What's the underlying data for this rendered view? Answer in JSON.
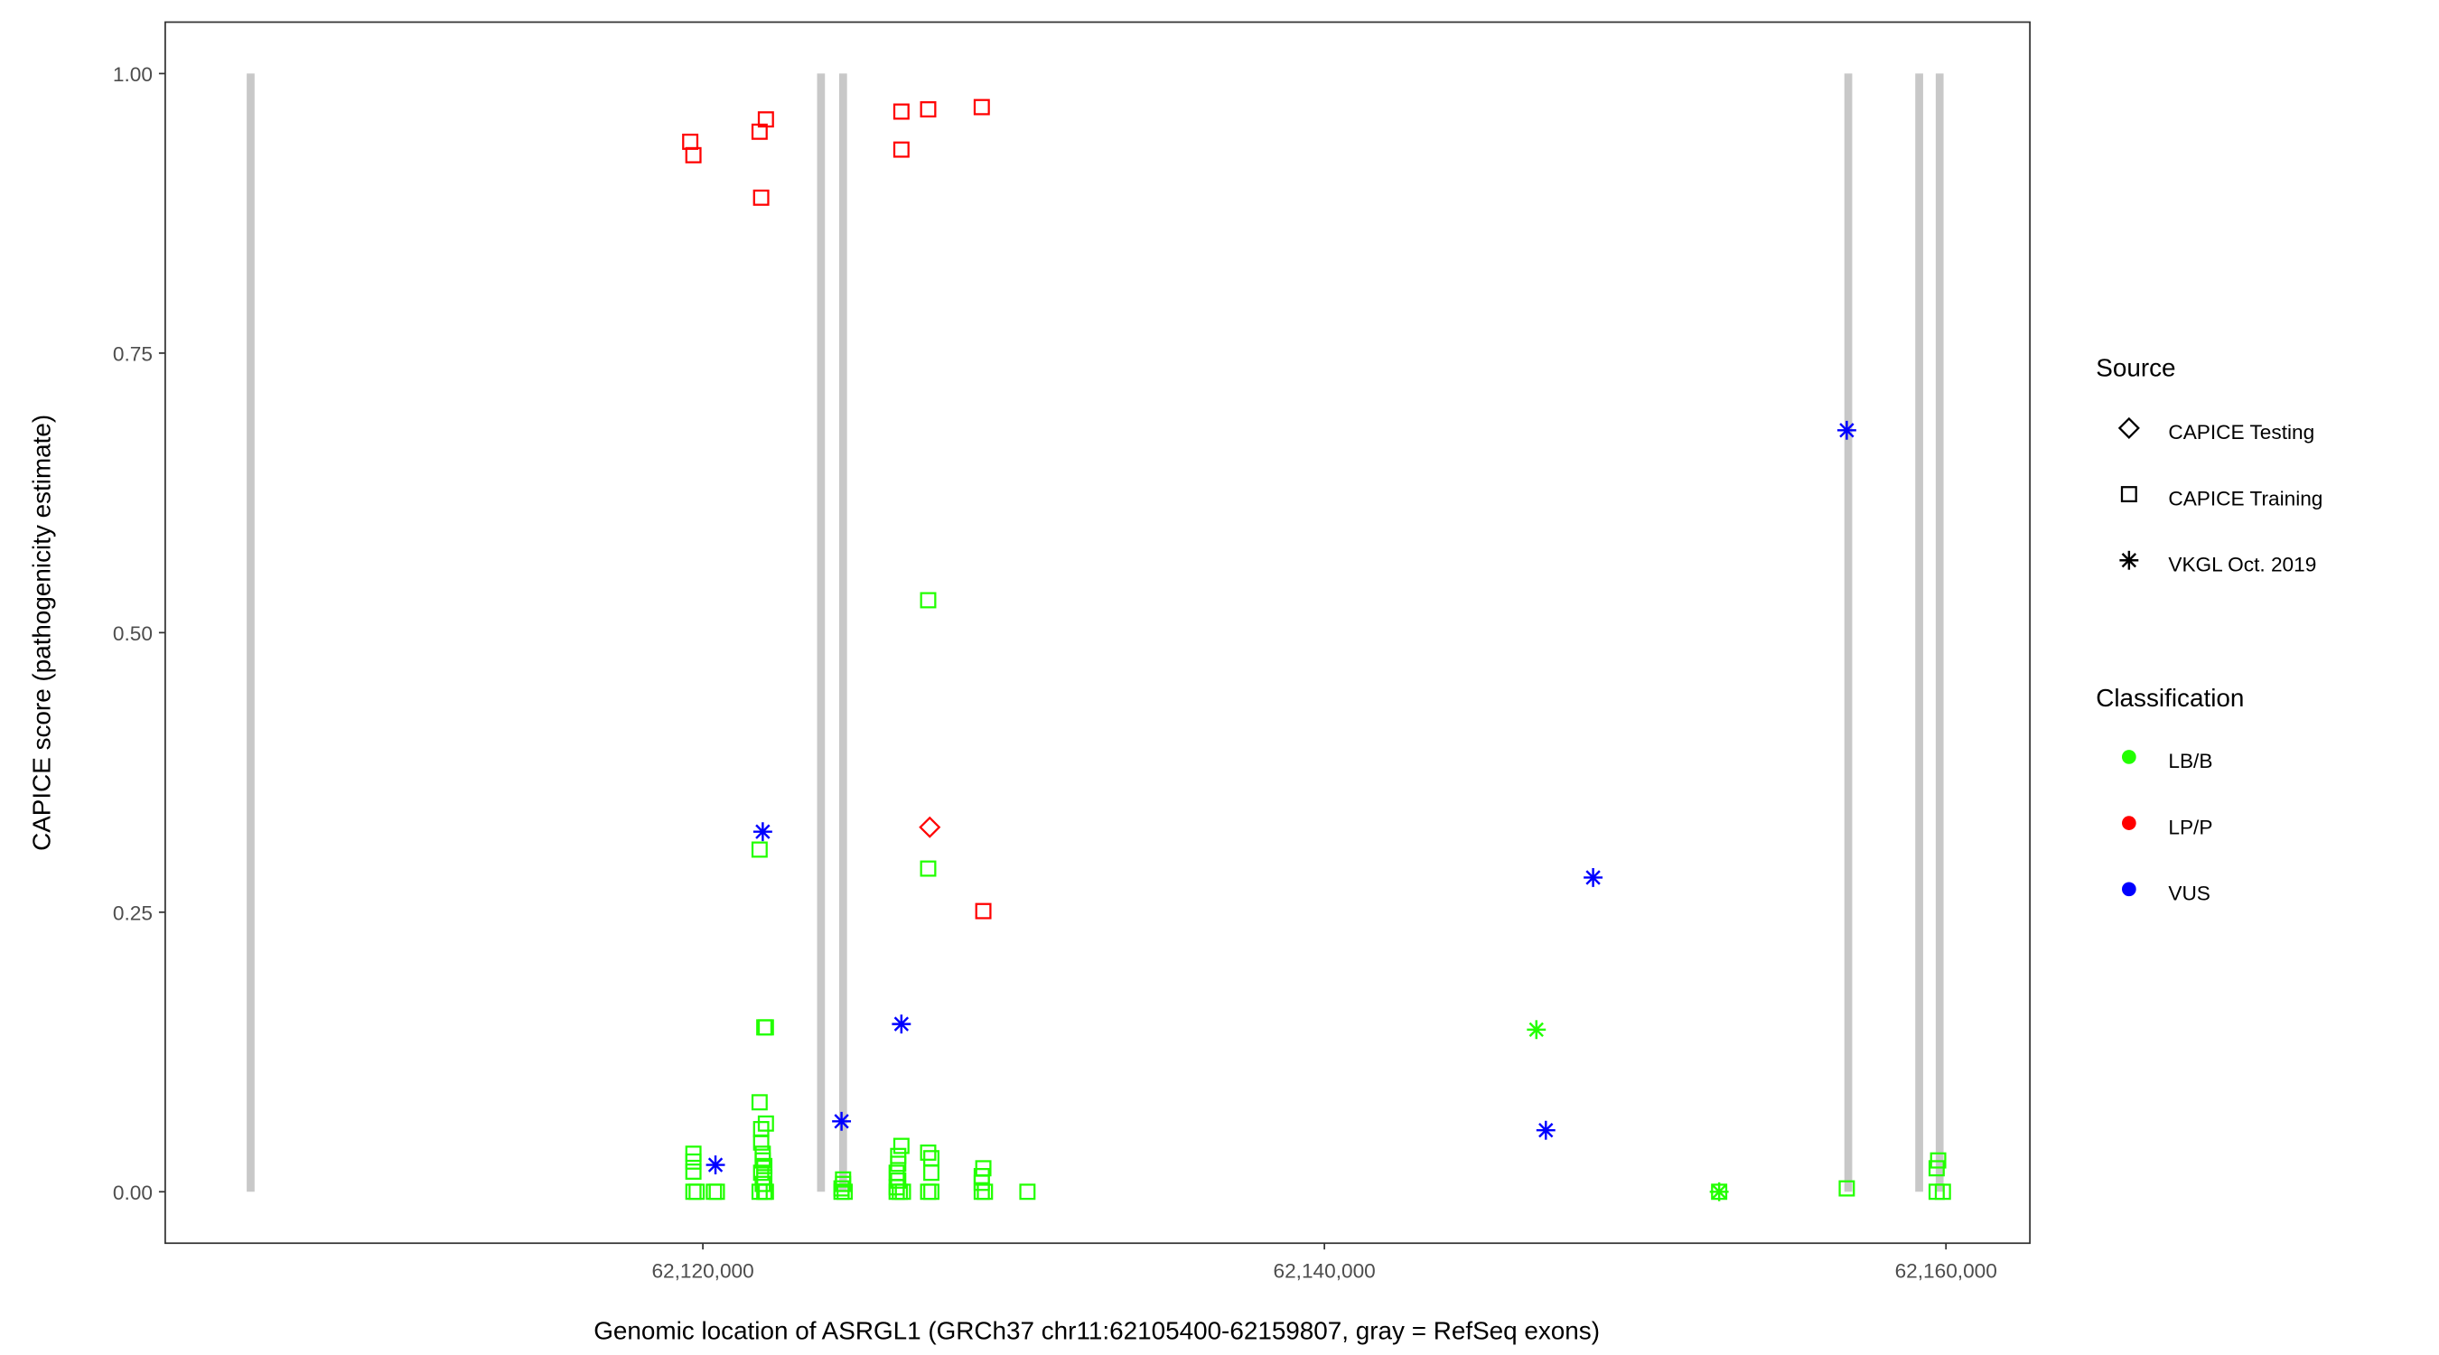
{
  "chart_data": {
    "type": "scatter",
    "title": "",
    "xlabel": "Genomic location of ASRGL1 (GRCh37 chr11:62105400-62159807, gray = RefSeq exons)",
    "ylabel": "CAPICE score (pathogenicity estimate)",
    "xlim": [
      62102700,
      62162700
    ],
    "ylim": [
      -0.046,
      1.046
    ],
    "x_ticks": [
      62120000,
      62140000,
      62160000
    ],
    "x_tick_labels": [
      "62,120,000",
      "62,140,000",
      "62,160,000"
    ],
    "y_ticks": [
      0,
      0.25,
      0.5,
      0.75,
      1.0
    ],
    "y_tick_labels": [
      "0.00",
      "0.25",
      "0.50",
      "0.75",
      "1.00"
    ],
    "grid": false,
    "exons_x": [
      62105449,
      62123802,
      62124512,
      62156857,
      62159139,
      62159797
    ],
    "exon_color": "#c8c8c8",
    "colors": {
      "LB/B": "#22ff00",
      "LP/P": "#ff0000",
      "VUS": "#0000ff"
    },
    "legend": {
      "placement": "right",
      "source_title": "Source",
      "source_items": [
        {
          "label": "CAPICE Testing",
          "shape": "diamond"
        },
        {
          "label": "CAPICE Training",
          "shape": "square"
        },
        {
          "label": "VKGL Oct. 2019",
          "shape": "asterisk"
        }
      ],
      "class_title": "Classification",
      "class_items": [
        {
          "label": "LB/B",
          "color": "#22ff00"
        },
        {
          "label": "LP/P",
          "color": "#ff0000"
        },
        {
          "label": "VUS",
          "color": "#0000ff"
        }
      ]
    },
    "series": [
      {
        "source": "CAPICE Training",
        "classification": "LP/P",
        "points": [
          [
            62119594,
            0.939
          ],
          [
            62119696,
            0.927
          ],
          [
            62121825,
            0.948
          ],
          [
            62122028,
            0.959
          ],
          [
            62121876,
            0.889
          ],
          [
            62126388,
            0.966
          ],
          [
            62127250,
            0.968
          ],
          [
            62128974,
            0.97
          ],
          [
            62126388,
            0.932
          ],
          [
            62129025,
            0.251
          ]
        ]
      },
      {
        "source": "CAPICE Testing",
        "classification": "LP/P",
        "points": [
          [
            62127301,
            0.326
          ]
        ]
      },
      {
        "source": "VKGL Oct. 2019",
        "classification": "VUS",
        "points": [
          [
            62121927,
            0.322
          ],
          [
            62126388,
            0.15
          ],
          [
            62124462,
            0.063
          ],
          [
            62120406,
            0.024
          ],
          [
            62156808,
            0.681
          ],
          [
            62148646,
            0.281
          ],
          [
            62147125,
            0.055
          ]
        ]
      },
      {
        "source": "VKGL Oct. 2019",
        "classification": "LB/B",
        "points": [
          [
            62146820,
            0.145
          ],
          [
            62152702,
            0.0
          ]
        ]
      },
      {
        "source": "CAPICE Training",
        "classification": "LB/B",
        "points": [
          [
            62119696,
            0.034
          ],
          [
            62119696,
            0.027
          ],
          [
            62119696,
            0.018
          ],
          [
            62119696,
            0
          ],
          [
            62119800,
            0
          ],
          [
            62120355,
            0
          ],
          [
            62120450,
            0
          ],
          [
            62121825,
            0.306
          ],
          [
            62122028,
            0.147
          ],
          [
            62121977,
            0.147
          ],
          [
            62121825,
            0.08
          ],
          [
            62122028,
            0.061
          ],
          [
            62121876,
            0.056
          ],
          [
            62121876,
            0.044
          ],
          [
            62121927,
            0.034
          ],
          [
            62121927,
            0.028
          ],
          [
            62121977,
            0.023
          ],
          [
            62121876,
            0.017
          ],
          [
            62121977,
            0.013
          ],
          [
            62121927,
            0.007
          ],
          [
            62121825,
            0
          ],
          [
            62121977,
            0
          ],
          [
            62122028,
            0
          ],
          [
            62124512,
            0.011
          ],
          [
            62124512,
            0.007
          ],
          [
            62124462,
            0.003
          ],
          [
            62124462,
            0
          ],
          [
            62124562,
            0
          ],
          [
            62126388,
            0.041
          ],
          [
            62126286,
            0.032
          ],
          [
            62126286,
            0.025
          ],
          [
            62126236,
            0.017
          ],
          [
            62126286,
            0.01
          ],
          [
            62126236,
            0.004
          ],
          [
            62126236,
            0
          ],
          [
            62126338,
            0
          ],
          [
            62126438,
            0
          ],
          [
            62127250,
            0.529
          ],
          [
            62127250,
            0.289
          ],
          [
            62127250,
            0.035
          ],
          [
            62127352,
            0.03
          ],
          [
            62127352,
            0.017
          ],
          [
            62127250,
            0
          ],
          [
            62127352,
            0
          ],
          [
            62129025,
            0.021
          ],
          [
            62128974,
            0.014
          ],
          [
            62128974,
            0.008
          ],
          [
            62128974,
            0
          ],
          [
            62129076,
            0
          ],
          [
            62130444,
            0
          ],
          [
            62152702,
            0
          ],
          [
            62156808,
            0.003
          ],
          [
            62159749,
            0.028
          ],
          [
            62159700,
            0.021
          ],
          [
            62159700,
            0
          ],
          [
            62159901,
            0
          ]
        ]
      }
    ]
  }
}
